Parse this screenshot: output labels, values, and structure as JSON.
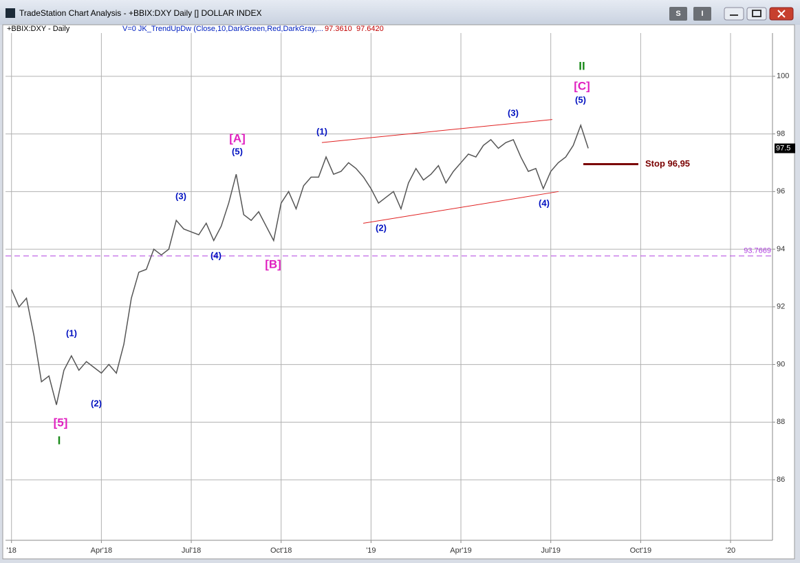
{
  "window": {
    "title": "TradeStation Chart Analysis - +BBIX:DXY Daily [] DOLLAR INDEX",
    "buttons": [
      "S",
      "I"
    ]
  },
  "header": {
    "symbol": "+BBIX:DXY - Daily",
    "indicator": "V=0  JK_TrendUpDw (Close,10,DarkGreen,Red,DarkGray,...",
    "value_1": "97.3610",
    "value_2": "97.6420"
  },
  "chart_data": {
    "type": "line",
    "color": "#555555",
    "x": [
      0,
      0.25,
      0.5,
      0.75,
      1,
      1.25,
      1.5,
      1.75,
      2,
      2.25,
      2.5,
      2.75,
      3,
      3.25,
      3.5,
      3.75,
      4,
      4.25,
      4.5,
      4.75,
      5,
      5.25,
      5.5,
      5.75,
      6,
      6.25,
      6.5,
      6.75,
      7,
      7.25,
      7.5,
      7.75,
      8,
      8.25,
      8.5,
      8.75,
      9,
      9.25,
      9.5,
      9.75,
      10,
      10.25,
      10.5,
      10.75,
      11,
      11.25,
      11.5,
      11.75,
      12,
      12.25,
      12.5,
      12.75,
      13,
      13.25,
      13.5,
      13.75,
      14,
      14.25,
      14.5,
      14.75,
      15,
      15.25,
      15.5,
      15.75,
      16,
      16.25,
      16.5,
      16.75,
      17,
      17.25,
      17.5,
      17.75,
      18,
      18.25,
      18.5,
      18.75,
      19,
      19.25
    ],
    "values": [
      92.6,
      92.0,
      92.3,
      91.0,
      89.4,
      89.6,
      88.6,
      89.8,
      90.3,
      89.8,
      90.1,
      89.9,
      89.7,
      90.0,
      89.7,
      90.7,
      92.3,
      93.2,
      93.3,
      94.0,
      93.8,
      94.0,
      95.0,
      94.7,
      94.6,
      94.5,
      94.9,
      94.3,
      94.8,
      95.6,
      96.6,
      95.2,
      95.0,
      95.3,
      94.8,
      94.3,
      95.6,
      96.0,
      95.4,
      96.2,
      96.5,
      96.5,
      97.2,
      96.6,
      96.7,
      97.0,
      96.8,
      96.5,
      96.1,
      95.6,
      95.8,
      96.0,
      95.4,
      96.3,
      96.8,
      96.4,
      96.6,
      96.9,
      96.3,
      96.7,
      97.0,
      97.3,
      97.2,
      97.6,
      97.8,
      97.5,
      97.7,
      97.8,
      97.2,
      96.7,
      96.8,
      96.1,
      96.7,
      97.0,
      97.2,
      97.6,
      98.3,
      97.5
    ],
    "xlim": [
      -0.2,
      25.4
    ],
    "ylim": [
      83.9,
      101.5
    ],
    "xticks": [
      {
        "value": 0,
        "label": "'18"
      },
      {
        "value": 3,
        "label": "Apr'18"
      },
      {
        "value": 6,
        "label": "Jul'18"
      },
      {
        "value": 9,
        "label": "Oct'18"
      },
      {
        "value": 12,
        "label": "'19"
      },
      {
        "value": 15,
        "label": "Apr'19"
      },
      {
        "value": 18,
        "label": "Jul'19"
      },
      {
        "value": 21,
        "label": "Oct'19"
      },
      {
        "value": 24,
        "label": "'20"
      }
    ],
    "yticks": [
      86,
      88,
      90,
      92,
      94,
      96,
      98,
      100
    ],
    "grid": true,
    "last_price": 97.5,
    "level_line": {
      "value": 93.7669,
      "label": "93.7669",
      "color": "#b040e0"
    },
    "stop_line": {
      "value": 96.95,
      "label": "Stop 96,95",
      "color": "#7a0000"
    },
    "trendlines": [
      {
        "x": [
          10.36,
          18.05
        ],
        "y": [
          97.7,
          98.5
        ],
        "color": "#e02020"
      },
      {
        "x": [
          11.74,
          18.26
        ],
        "y": [
          94.9,
          96.0
        ],
        "color": "#e02020"
      }
    ],
    "annotations": [
      {
        "text": "[5]",
        "color": "#e020c0"
      },
      {
        "text": "I",
        "color": "#1a8a1a"
      },
      {
        "text": "(1)",
        "color": "#0010c0"
      },
      {
        "text": "(2)",
        "color": "#0010c0"
      },
      {
        "text": "(3)",
        "color": "#0010c0"
      },
      {
        "text": "(4)",
        "color": "#0010c0"
      },
      {
        "text": "[A]",
        "color": "#e020c0"
      },
      {
        "text": "(5)",
        "color": "#0010c0"
      },
      {
        "text": "[B]",
        "color": "#e020c0"
      },
      {
        "text": "(1)",
        "color": "#0010c0"
      },
      {
        "text": "(2)",
        "color": "#0010c0"
      },
      {
        "text": "(3)",
        "color": "#0010c0"
      },
      {
        "text": "(4)",
        "color": "#0010c0"
      },
      {
        "text": "(5)",
        "color": "#0010c0"
      },
      {
        "text": "[C]",
        "color": "#e020c0"
      },
      {
        "text": "II",
        "color": "#1a8a1a"
      }
    ]
  }
}
